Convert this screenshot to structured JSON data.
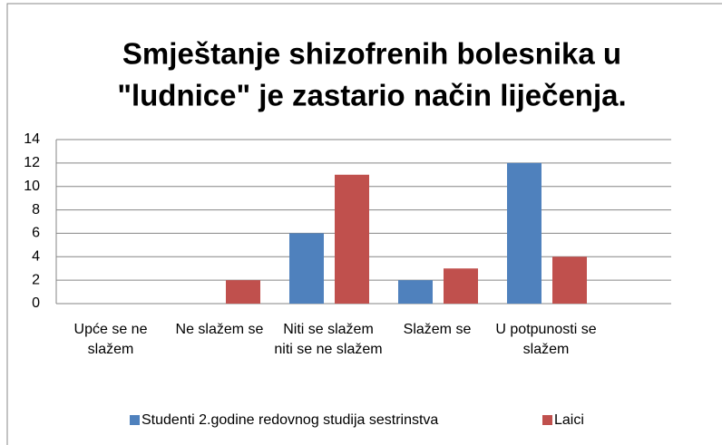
{
  "chart_data": {
    "type": "bar",
    "title": [
      "Smještanje shizofrenih bolesnika u",
      "\"ludnice\" je zastario način liječenja."
    ],
    "categories": [
      "Upće se ne slažem",
      "Ne slažem se",
      "Niti se slažem niti se ne slažem",
      "Slažem se",
      "U potpunosti se slažem"
    ],
    "series": [
      {
        "name": "Studenti 2.godine redovnog studija sestrinstva",
        "color": "#4f81bd",
        "values": [
          0,
          0,
          6,
          2,
          12
        ]
      },
      {
        "name": "Laici",
        "color": "#c0504d",
        "values": [
          0,
          2,
          11,
          3,
          4
        ]
      }
    ],
    "ylim": [
      0,
      14
    ],
    "yticks": [
      0,
      2,
      4,
      6,
      8,
      10,
      12,
      14
    ],
    "grid": true,
    "legend": "bottom"
  }
}
